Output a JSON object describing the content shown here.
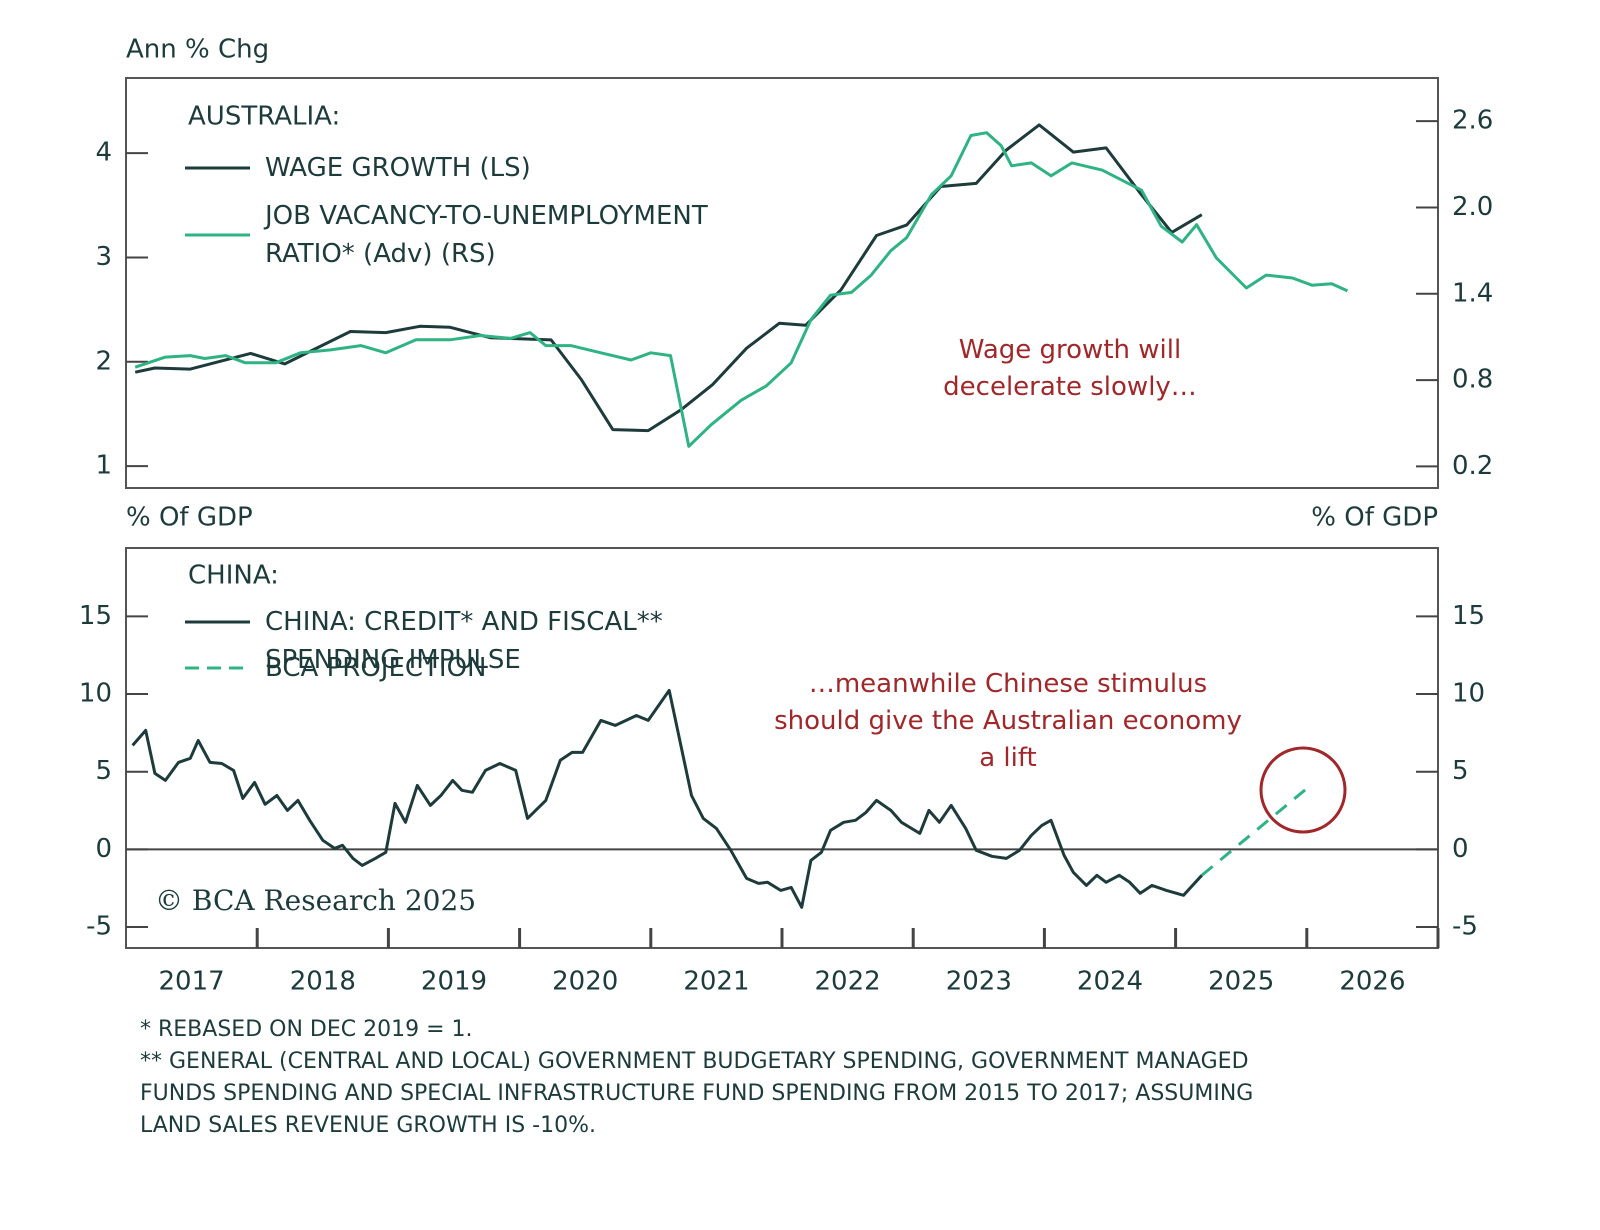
{
  "chart_data": [
    {
      "type": "line",
      "y_label": "Ann % Chg",
      "legend_title": "AUSTRALIA:",
      "annotation": [
        "Wage growth will",
        "decelerate slowly…"
      ],
      "xlim": [
        2017,
        2027
      ],
      "ylim": [
        0.79,
        4.72
      ],
      "yticks": [
        1,
        2,
        3,
        4
      ],
      "y2lim": [
        0.05,
        2.9
      ],
      "y2ticks": [
        0.2,
        0.8,
        1.4,
        {
          "value": 2,
          "label": "2.0"
        },
        2.6
      ],
      "series": [
        {
          "name": "WAGE GROWTH (LS)",
          "color": "#1e3b3c",
          "axis": "y",
          "x": [
            2017.07,
            2017.22,
            2017.49,
            2017.95,
            2018.21,
            2018.71,
            2018.98,
            2019.24,
            2019.47,
            2019.78,
            2020.24,
            2020.47,
            2020.71,
            2020.98,
            2021.23,
            2021.47,
            2021.73,
            2021.98,
            2022.18,
            2022.45,
            2022.72,
            2022.95,
            2023.21,
            2023.48,
            2023.71,
            2023.96,
            2024.22,
            2024.47,
            2024.74,
            2024.97,
            2025.2
          ],
          "values": [
            1.9,
            1.94,
            1.93,
            2.08,
            1.98,
            2.29,
            2.28,
            2.34,
            2.33,
            2.23,
            2.21,
            1.83,
            1.35,
            1.34,
            1.54,
            1.78,
            2.13,
            2.37,
            2.35,
            2.69,
            3.21,
            3.31,
            3.68,
            3.71,
            4.03,
            4.27,
            4.01,
            4.05,
            3.6,
            3.24,
            3.41
          ]
        },
        {
          "name": "JOB VACANCY-TO-UNEMPLOYMENT RATIO* (Adv) (RS)",
          "color": "#2fb383",
          "axis": "y2",
          "x": [
            2017.07,
            2017.3,
            2017.49,
            2017.6,
            2017.76,
            2017.91,
            2018.14,
            2018.33,
            2018.56,
            2018.79,
            2018.98,
            2019.21,
            2019.47,
            2019.7,
            2019.93,
            2020.08,
            2020.2,
            2020.39,
            2020.62,
            2020.85,
            2021.0,
            2021.15,
            2021.29,
            2021.46,
            2021.69,
            2021.88,
            2022.07,
            2022.22,
            2022.37,
            2022.53,
            2022.68,
            2022.83,
            2022.95,
            2023.14,
            2023.29,
            2023.44,
            2023.56,
            2023.67,
            2023.75,
            2023.9,
            2024.05,
            2024.21,
            2024.44,
            2024.74,
            2024.89,
            2025.05,
            2025.16,
            2025.31,
            2025.54,
            2025.69,
            2025.89,
            2026.04,
            2026.19,
            2026.31
          ],
          "values": [
            0.89,
            0.96,
            0.97,
            0.95,
            0.97,
            0.92,
            0.92,
            0.99,
            1.01,
            1.04,
            0.99,
            1.08,
            1.08,
            1.11,
            1.09,
            1.13,
            1.04,
            1.04,
            0.99,
            0.94,
            0.99,
            0.97,
            0.34,
            0.49,
            0.66,
            0.76,
            0.92,
            1.22,
            1.39,
            1.41,
            1.53,
            1.7,
            1.79,
            2.09,
            2.22,
            2.5,
            2.52,
            2.43,
            2.29,
            2.31,
            2.22,
            2.31,
            2.26,
            2.12,
            1.87,
            1.76,
            1.88,
            1.65,
            1.44,
            1.53,
            1.51,
            1.46,
            1.47,
            1.42
          ]
        }
      ]
    },
    {
      "type": "line",
      "y_label": "% Of GDP",
      "y2_label": "% Of GDP",
      "legend_title": "CHINA:",
      "annotation": [
        "…meanwhile Chinese stimulus",
        "should give the Australian economy",
        "a lift"
      ],
      "source": "© BCA Research 2025",
      "xlim": [
        2017,
        2027
      ],
      "ylim": [
        -6.35,
        19.4
      ],
      "yticks": [
        -5,
        0,
        5,
        10,
        15
      ],
      "y2lim": [
        -6.35,
        19.4
      ],
      "y2ticks": [
        -5,
        0,
        5,
        10,
        15
      ],
      "zero_line": true,
      "xticks": [
        {
          "value": 2017.5,
          "label": "2017"
        },
        {
          "value": 2018.5,
          "label": "2018"
        },
        {
          "value": 2019.5,
          "label": "2019"
        },
        {
          "value": 2020.5,
          "label": "2020"
        },
        {
          "value": 2021.5,
          "label": "2021"
        },
        {
          "value": 2022.5,
          "label": "2022"
        },
        {
          "value": 2023.5,
          "label": "2023"
        },
        {
          "value": 2024.5,
          "label": "2024"
        },
        {
          "value": 2025.5,
          "label": "2025"
        },
        {
          "value": 2026.5,
          "label": "2026"
        }
      ],
      "x_tick_marks": [
        2018,
        2019,
        2020,
        2021,
        2022,
        2023,
        2024,
        2025,
        2026,
        2027
      ],
      "series": [
        {
          "name": "CHINA: CREDIT* AND FISCAL** SPENDING IMPULSE",
          "color": "#1e3b3c",
          "axis": "y",
          "x": [
            2017.05,
            2017.15,
            2017.22,
            2017.3,
            2017.4,
            2017.49,
            2017.55,
            2017.64,
            2017.73,
            2017.82,
            2017.89,
            2017.98,
            2018.06,
            2018.15,
            2018.23,
            2018.31,
            2018.4,
            2018.5,
            2018.59,
            2018.65,
            2018.73,
            2018.8,
            2018.9,
            2018.98,
            2019.05,
            2019.13,
            2019.22,
            2019.32,
            2019.4,
            2019.49,
            2019.56,
            2019.64,
            2019.74,
            2019.85,
            2019.97,
            2020.06,
            2020.2,
            2020.31,
            2020.4,
            2020.48,
            2020.62,
            2020.73,
            2020.89,
            2020.98,
            2021.14,
            2021.31,
            2021.4,
            2021.5,
            2021.61,
            2021.73,
            2021.82,
            2021.89,
            2021.99,
            2022.07,
            2022.15,
            2022.22,
            2022.3,
            2022.37,
            2022.47,
            2022.56,
            2022.64,
            2022.72,
            2022.83,
            2022.91,
            2023.05,
            2023.12,
            2023.2,
            2023.29,
            2023.4,
            2023.48,
            2023.6,
            2023.71,
            2023.81,
            2023.9,
            2023.98,
            2024.05,
            2024.15,
            2024.22,
            2024.32,
            2024.4,
            2024.47,
            2024.57,
            2024.65,
            2024.73,
            2024.82,
            2024.93,
            2025.06,
            2025.2
          ],
          "values": [
            6.69,
            7.66,
            4.89,
            4.44,
            5.6,
            5.86,
            7.01,
            5.6,
            5.53,
            5.08,
            3.28,
            4.31,
            2.9,
            3.47,
            2.51,
            3.15,
            1.87,
            0.58,
            0.06,
            0.26,
            -0.58,
            -1.03,
            -0.58,
            -0.19,
            2.96,
            1.74,
            4.12,
            2.83,
            3.47,
            4.44,
            3.8,
            3.67,
            5.08,
            5.53,
            5.08,
            1.99,
            3.15,
            5.73,
            6.24,
            6.24,
            8.3,
            7.98,
            8.62,
            8.3,
            10.23,
            3.47,
            1.99,
            1.35,
            -0.06,
            -1.87,
            -2.19,
            -2.12,
            -2.64,
            -2.45,
            -3.73,
            -0.71,
            -0.19,
            1.22,
            1.74,
            1.87,
            2.38,
            3.15,
            2.51,
            1.74,
            1.03,
            2.51,
            1.74,
            2.83,
            1.35,
            -0.06,
            -0.45,
            -0.58,
            -0.06,
            0.9,
            1.54,
            1.87,
            -0.39,
            -1.48,
            -2.32,
            -1.67,
            -2.12,
            -1.67,
            -2.12,
            -2.83,
            -2.32,
            -2.64,
            -2.96,
            -1.67
          ]
        },
        {
          "name": "BCA PROJECTION",
          "color": "#2fb383",
          "axis": "y",
          "dashed": true,
          "x": [
            2025.2,
            2026.0
          ],
          "values": [
            -1.67,
            3.92
          ]
        }
      ]
    }
  ],
  "footnotes": [
    "* REBASED ON DEC 2019 = 1.",
    "** GENERAL (CENTRAL AND LOCAL) GOVERNMENT BUDGETARY SPENDING, GOVERNMENT MANAGED",
    "FUNDS SPENDING AND SPECIAL INFRASTRUCTURE FUND SPENDING FROM 2015 TO 2017; ASSUMING",
    "LAND SALES REVENUE GROWTH IS -10%."
  ]
}
